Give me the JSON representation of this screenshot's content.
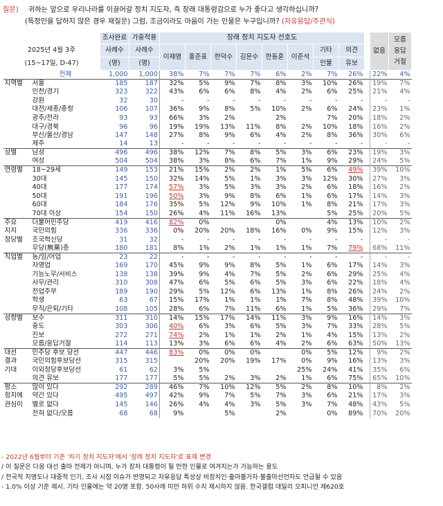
{
  "question": {
    "label": "질문)",
    "line1": "귀하는 앞으로 우리나라를 이끌어갈 정치 지도자, 즉 장래 대통령감으로 누가 좋다고 생각하십니까?",
    "line2_main": "(특정인을 답하지 않은 경우 재질문) 그럼, 조금이라도 마음이 가는 인물은 누구입니까?",
    "line2_option": "(자유응답/주관식)"
  },
  "header": {
    "survey_date": "2025년 4월 3주",
    "survey_period": "(15~17일, D-47)",
    "col_survey_done_1": "조사완료",
    "col_survey_done_2": "사례수",
    "col_survey_done_3": "(명)",
    "col_weighted_1": "가중적용",
    "col_weighted_2": "사례수",
    "col_weighted_3": "(명)",
    "group_title": "장래 정치 지도자 선호도",
    "candidates": [
      "이재명",
      "홍준표",
      "한덕수",
      "김문수",
      "한동훈",
      "이준석"
    ],
    "other_1": "기타",
    "other_2": "인물",
    "reserve_1": "의견",
    "reserve_2": "유보",
    "none": "없음",
    "all_resp_1": "모름",
    "all_resp_2": "응답",
    "all_resp_3": "거절"
  },
  "rows": [
    {
      "group": "",
      "cat": "전체",
      "n": "1,000",
      "w": "1,000",
      "v": [
        "38%",
        "7%",
        "7%",
        "7%",
        "6%",
        "2%",
        "7%",
        "26%"
      ],
      "none": "22%",
      "dk": "4%",
      "total": true
    },
    {
      "group": "지역별",
      "cat": "서울",
      "n": "185",
      "w": "187",
      "v": [
        "32%",
        "5%",
        "9%",
        "7%",
        "8%",
        "3%",
        "10%",
        "26%"
      ],
      "none": "19%",
      "dk": "7%",
      "gs": true
    },
    {
      "group": "",
      "cat": "인천/경기",
      "n": "323",
      "w": "322",
      "v": [
        "43%",
        "6%",
        "6%",
        "8%",
        "4%",
        "2%",
        "6%",
        "25%"
      ],
      "none": "21%",
      "dk": "4%"
    },
    {
      "group": "",
      "cat": "강원",
      "n": "32",
      "w": "30",
      "v": [
        "-",
        "-",
        "-",
        "-",
        "-",
        "-",
        "-",
        "-"
      ],
      "none": "-",
      "dk": "-"
    },
    {
      "group": "",
      "cat": "대전/세종/충청",
      "n": "106",
      "w": "107",
      "v": [
        "36%",
        "9%",
        "8%",
        "5%",
        "10%",
        "2%",
        "6%",
        "24%"
      ],
      "none": "23%",
      "dk": "1%"
    },
    {
      "group": "",
      "cat": "광주/전라",
      "n": "93",
      "w": "93",
      "v": [
        "66%",
        "3%",
        "2%",
        "",
        "2%",
        "",
        "7%",
        "20%"
      ],
      "none": "18%",
      "dk": "2%"
    },
    {
      "group": "",
      "cat": "대구/경북",
      "n": "96",
      "w": "96",
      "v": [
        "19%",
        "19%",
        "13%",
        "11%",
        "8%",
        "2%",
        "10%",
        "18%"
      ],
      "none": "16%",
      "dk": "2%"
    },
    {
      "group": "",
      "cat": "부산/울산/경남",
      "n": "147",
      "w": "148",
      "v": [
        "27%",
        "8%",
        "9%",
        "6%",
        "4%",
        "2%",
        "8%",
        "36%"
      ],
      "none": "30%",
      "dk": "6%"
    },
    {
      "group": "",
      "cat": "제주",
      "n": "14",
      "w": "13",
      "v": [
        "-",
        "-",
        "-",
        "-",
        "-",
        "-",
        "-",
        "-"
      ],
      "none": "-",
      "dk": "-"
    },
    {
      "group": "성별",
      "cat": "남성",
      "n": "496",
      "w": "496",
      "v": [
        "38%",
        "12%",
        "7%",
        "8%",
        "5%",
        "3%",
        "6%",
        "23%"
      ],
      "none": "19%",
      "dk": "3%",
      "gs": true
    },
    {
      "group": "",
      "cat": "여성",
      "n": "504",
      "w": "504",
      "v": [
        "38%",
        "3%",
        "8%",
        "6%",
        "7%",
        "1%",
        "9%",
        "29%"
      ],
      "none": "24%",
      "dk": "5%"
    },
    {
      "group": "연령별",
      "cat": "18~29세",
      "n": "149",
      "w": "153",
      "v": [
        "21%",
        "15%",
        "2%",
        "2%",
        "1%",
        "5%",
        "6%",
        "49%"
      ],
      "none": "39%",
      "dk": "10%",
      "gs": true,
      "u": [
        7
      ]
    },
    {
      "group": "",
      "cat": "30대",
      "n": "145",
      "w": "150",
      "v": [
        "32%",
        "14%",
        "5%",
        "1%",
        "3%",
        "3%",
        "12%",
        "30%"
      ],
      "none": "27%",
      "dk": "3%"
    },
    {
      "group": "",
      "cat": "40대",
      "n": "177",
      "w": "174",
      "v": [
        "57%",
        "3%",
        "5%",
        "3%",
        "3%",
        "2%",
        "6%",
        "18%"
      ],
      "none": "16%",
      "dk": "2%",
      "u": [
        0
      ]
    },
    {
      "group": "",
      "cat": "50대",
      "n": "191",
      "w": "196",
      "v": [
        "50%",
        "3%",
        "9%",
        "8%",
        "6%",
        "1%",
        "6%",
        "17%"
      ],
      "none": "14%",
      "dk": "3%",
      "u": [
        0
      ]
    },
    {
      "group": "",
      "cat": "60대",
      "n": "184",
      "w": "176",
      "v": [
        "35%",
        "5%",
        "12%",
        "9%",
        "10%",
        "1%",
        "8%",
        "21%"
      ],
      "none": "17%",
      "dk": "3%"
    },
    {
      "group": "",
      "cat": "70대 이상",
      "n": "154",
      "w": "150",
      "v": [
        "26%",
        "4%",
        "11%",
        "16%",
        "13%",
        "",
        "5%",
        "25%"
      ],
      "none": "20%",
      "dk": "5%"
    },
    {
      "group": "주요",
      "cat": "더불어민주당",
      "n": "419",
      "w": "416",
      "v": [
        "82%",
        "0%",
        "",
        "",
        "0%",
        "",
        "4%",
        "13%"
      ],
      "none": "10%",
      "dk": "2%",
      "gs": true,
      "u": [
        0
      ]
    },
    {
      "group": "지지",
      "cat": "국민의힘",
      "n": "336",
      "w": "336",
      "v": [
        "0%",
        "20%",
        "20%",
        "18%",
        "16%",
        "0%",
        "9%",
        "15%"
      ],
      "none": "12%",
      "dk": "3%"
    },
    {
      "group": "정당별",
      "cat": "조국혁신당",
      "n": "31",
      "w": "32",
      "v": [
        "-",
        "-",
        "-",
        "-",
        "-",
        "-",
        "-",
        "-"
      ],
      "none": "-",
      "dk": "-"
    },
    {
      "group": "",
      "cat": "무당(無黨)층",
      "n": "180",
      "w": "181",
      "v": [
        "8%",
        "1%",
        "2%",
        "1%",
        "1%",
        "1%",
        "7%",
        "79%"
      ],
      "none": "68%",
      "dk": "11%",
      "u": [
        7
      ]
    },
    {
      "group": "직업별",
      "cat": "농/임/어업",
      "n": "23",
      "w": "22",
      "v": [
        "-",
        "-",
        "-",
        "-",
        "-",
        "-",
        "-",
        "-"
      ],
      "none": "-",
      "dk": "-",
      "gs": true
    },
    {
      "group": "",
      "cat": "자영업",
      "n": "169",
      "w": "170",
      "v": [
        "45%",
        "9%",
        "9%",
        "8%",
        "5%",
        "1%",
        "6%",
        "17%"
      ],
      "none": "14%",
      "dk": "3%"
    },
    {
      "group": "",
      "cat": "기능노무/서비스",
      "n": "138",
      "w": "138",
      "v": [
        "39%",
        "9%",
        "4%",
        "7%",
        "5%",
        "2%",
        "6%",
        "29%"
      ],
      "none": "25%",
      "dk": "4%"
    },
    {
      "group": "",
      "cat": "사무/관리",
      "n": "310",
      "w": "308",
      "v": [
        "47%",
        "6%",
        "5%",
        "6%",
        "5%",
        "3%",
        "6%",
        "22%"
      ],
      "none": "18%",
      "dk": "4%"
    },
    {
      "group": "",
      "cat": "전업주부",
      "n": "189",
      "w": "190",
      "v": [
        "29%",
        "5%",
        "12%",
        "6%",
        "13%",
        "1%",
        "8%",
        "26%"
      ],
      "none": "24%",
      "dk": "2%"
    },
    {
      "group": "",
      "cat": "학생",
      "n": "63",
      "w": "67",
      "v": [
        "15%",
        "17%",
        "1%",
        "1%",
        "1%",
        "7%",
        "8%",
        "48%"
      ],
      "none": "39%",
      "dk": "10%"
    },
    {
      "group": "",
      "cat": "무직/은퇴/기타",
      "n": "108",
      "w": "105",
      "v": [
        "28%",
        "6%",
        "7%",
        "11%",
        "6%",
        "1%",
        "5%",
        "36%"
      ],
      "none": "29%",
      "dk": "7%"
    },
    {
      "group": "성향별",
      "cat": "보수",
      "n": "311",
      "w": "310",
      "v": [
        "14%",
        "15%",
        "17%",
        "14%",
        "11%",
        "3%",
        "9%",
        "16%"
      ],
      "none": "14%",
      "dk": "3%",
      "gs": true
    },
    {
      "group": "",
      "cat": "중도",
      "n": "303",
      "w": "306",
      "v": [
        "40%",
        "6%",
        "3%",
        "6%",
        "5%",
        "3%",
        "7%",
        "33%"
      ],
      "none": "28%",
      "dk": "5%",
      "u": [
        0
      ]
    },
    {
      "group": "",
      "cat": "진보",
      "n": "272",
      "w": "271",
      "v": [
        "74%",
        "2%",
        "1%",
        "1%",
        "2%",
        "1%",
        "4%",
        "15%"
      ],
      "none": "13%",
      "dk": "2%",
      "u": [
        0
      ]
    },
    {
      "group": "",
      "cat": "모름/응답거절",
      "n": "114",
      "w": "113",
      "v": [
        "13%",
        "3%",
        "6%",
        "6%",
        "4%",
        "2%",
        "6%",
        "63%"
      ],
      "none": "50%",
      "dk": "13%"
    },
    {
      "group": "대선",
      "cat": "민주당 후보 당선",
      "n": "447",
      "w": "446",
      "v": [
        "83%",
        "0%",
        "0%",
        "0%",
        "",
        "0%",
        "5%",
        "12%"
      ],
      "none": "9%",
      "dk": "2%",
      "gs": true,
      "u": [
        0
      ]
    },
    {
      "group": "결과",
      "cat": "국민의힘후보당선",
      "n": "315",
      "w": "315",
      "v": [
        "",
        "20%",
        "20%",
        "19%",
        "17%",
        "0%",
        "9%",
        "16%"
      ],
      "none": "13%",
      "dk": "3%"
    },
    {
      "group": "기대",
      "cat": "이외정당후보당선",
      "n": "61",
      "w": "62",
      "v": [
        "3%",
        "5%",
        "",
        "",
        "",
        "25%",
        "24%",
        "41%"
      ],
      "none": "35%",
      "dk": "6%"
    },
    {
      "group": "",
      "cat": "의견 유보",
      "n": "177",
      "w": "177",
      "v": [
        "5%",
        "5%",
        "2%",
        "3%",
        "2%",
        "1%",
        "6%",
        "75%"
      ],
      "none": "65%",
      "dk": "10%"
    },
    {
      "group": "평소",
      "cat": "많이 있다",
      "n": "292",
      "w": "289",
      "v": [
        "46%",
        "7%",
        "10%",
        "12%",
        "5%",
        "2%",
        "8%",
        "10%"
      ],
      "none": "8%",
      "dk": "2%",
      "gs": true
    },
    {
      "group": "정치에",
      "cat": "약간 있다",
      "n": "495",
      "w": "497",
      "v": [
        "42%",
        "9%",
        "7%",
        "5%",
        "7%",
        "3%",
        "6%",
        "21%"
      ],
      "none": "17%",
      "dk": "3%"
    },
    {
      "group": "관심이",
      "cat": "별로 없다",
      "n": "145",
      "w": "146",
      "v": [
        "26%",
        "4%",
        "4%",
        "3%",
        "5%",
        "3%",
        "7%",
        "48%"
      ],
      "none": "43%",
      "dk": "5%"
    },
    {
      "group": "",
      "cat": "전혀 없다/모름",
      "n": "68",
      "w": "68",
      "v": [
        "9%",
        "",
        "5%",
        "",
        "2%",
        "",
        "0%",
        "89%"
      ],
      "none": "70%",
      "dk": "20%"
    }
  ],
  "notes": {
    "n1": "- 2022년 6월부터 기준 '차기 정치 지도자'에서 '장래 정치 지도자'로 표제 변경",
    "n2": "/ 이 질문은 다음 대선 출마 전제가 아니며, 누가 장차 대통령이 될 만한 인물로 여겨지는가 가늠하는 용도",
    "n3": "/ 전국적 지명도나 대중적 인기, 조사 시점 이슈가 반영되고 자유응답 특성상 비정치인·출마불가자·불출마선언자도 언급될 수 있음",
    "n4": "- 1.0% 이상 기준 제시. 기타 인물에는 약 20명 포함. 50사례 미만 하위 수치 제시하지 않음. 한국갤럽 데일리 오피니언 제620호"
  }
}
